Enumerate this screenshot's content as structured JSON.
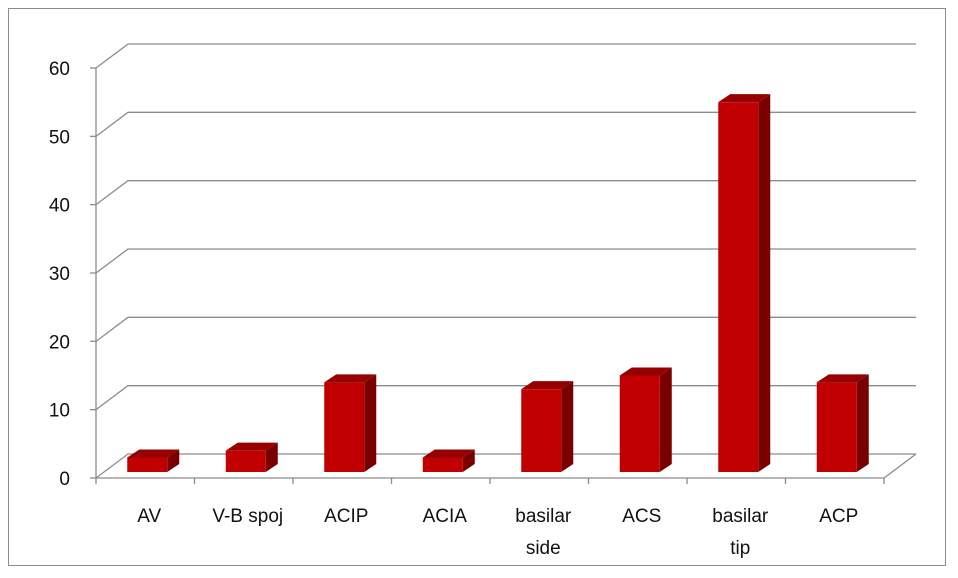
{
  "chart_data": {
    "type": "bar",
    "style": "3d-column",
    "title": "",
    "xlabel": "",
    "ylabel": "",
    "categories": [
      "AV",
      "V-B spoj",
      "ACIP",
      "ACIA",
      "basilar side",
      "ACS",
      "basilar tip",
      "ACP"
    ],
    "category_lines": [
      [
        "AV"
      ],
      [
        "V-B spoj"
      ],
      [
        "ACIP"
      ],
      [
        "ACIA"
      ],
      [
        "basilar",
        "side"
      ],
      [
        "ACS"
      ],
      [
        "basilar",
        "tip"
      ],
      [
        "ACP"
      ]
    ],
    "values": [
      3,
      4,
      14,
      3,
      13,
      15,
      55,
      14
    ],
    "ylim": [
      0,
      60
    ],
    "yticks": [
      "0",
      "10",
      "20",
      "30",
      "40",
      "50",
      "60"
    ],
    "grid": true,
    "legend": "none",
    "colors": {
      "bar_front": "#c00000",
      "bar_side": "#7a0000",
      "bar_top": "#960000",
      "grid": "#8c8c8c"
    }
  }
}
